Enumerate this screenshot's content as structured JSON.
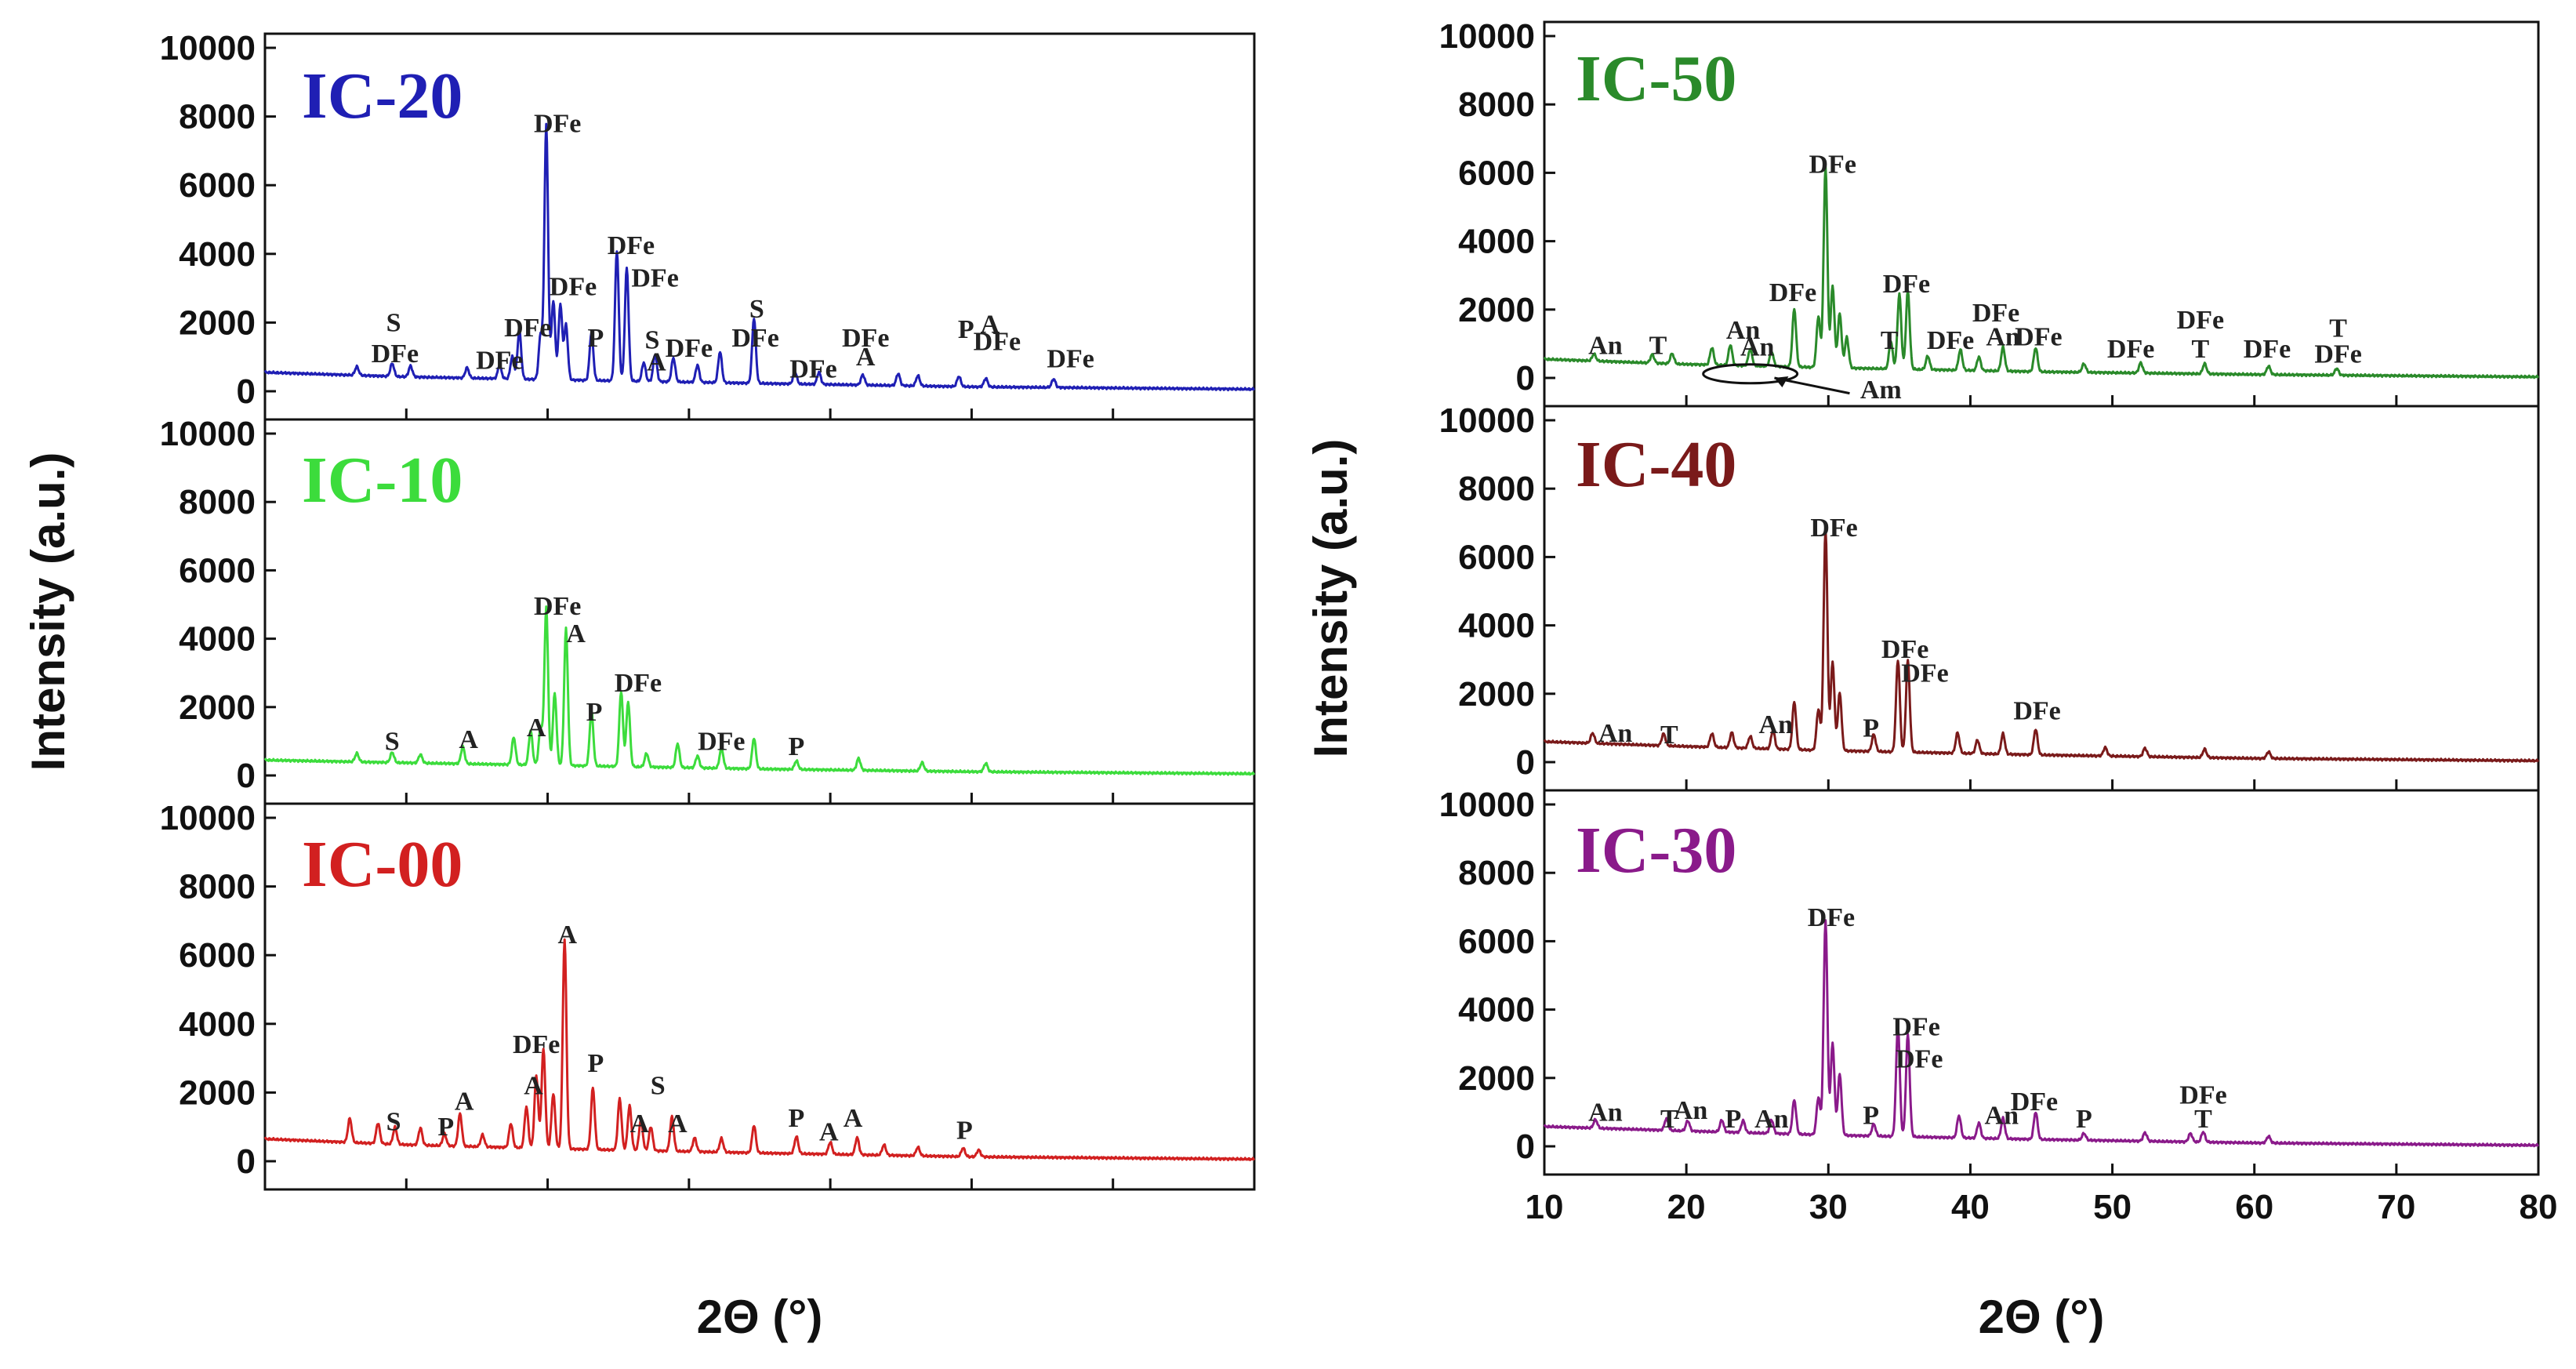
{
  "chart_data": [
    {
      "type": "line",
      "title": "IC-20",
      "column": "left",
      "color": "#1f1fb4",
      "ylabel": "Intensity (a.u.)",
      "xlabel": "2Θ (°)",
      "xlim": [
        10,
        80
      ],
      "ylim": [
        0,
        10000
      ],
      "yticks": [
        "0",
        "2000",
        "4000",
        "6000",
        "8000",
        "10000"
      ],
      "xticks": [
        "10",
        "20",
        "30",
        "40",
        "50",
        "60",
        "70",
        "80"
      ],
      "baseline": [
        [
          10,
          550
        ],
        [
          20,
          420
        ],
        [
          30,
          340
        ],
        [
          45,
          230
        ],
        [
          60,
          130
        ],
        [
          80,
          60
        ]
      ],
      "peaks": [
        [
          16.5,
          250
        ],
        [
          19.0,
          380
        ],
        [
          20.3,
          320
        ],
        [
          24.3,
          300
        ],
        [
          26.6,
          380
        ],
        [
          27.5,
          650
        ],
        [
          28.0,
          1400
        ],
        [
          29.5,
          1300
        ],
        [
          29.9,
          7400
        ],
        [
          30.4,
          2300
        ],
        [
          30.9,
          2200
        ],
        [
          31.3,
          1600
        ],
        [
          33.1,
          1400
        ],
        [
          34.9,
          3800
        ],
        [
          35.6,
          3300
        ],
        [
          36.8,
          550
        ],
        [
          37.6,
          800
        ],
        [
          38.9,
          700
        ],
        [
          40.6,
          500
        ],
        [
          42.2,
          900
        ],
        [
          44.6,
          1900
        ],
        [
          47.5,
          350
        ],
        [
          49.2,
          350
        ],
        [
          52.3,
          300
        ],
        [
          54.8,
          350
        ],
        [
          56.2,
          300
        ],
        [
          59.1,
          300
        ],
        [
          61.0,
          250
        ],
        [
          65.8,
          250
        ]
      ],
      "annotations": [
        {
          "text": "DFe",
          "x": 30.7,
          "y": 7550
        },
        {
          "text": "DFe",
          "x": 35.9,
          "y": 4000
        },
        {
          "text": "DFe",
          "x": 31.8,
          "y": 2800
        },
        {
          "text": "DFe",
          "x": 37.6,
          "y": 3050
        },
        {
          "text": "DFe",
          "x": 28.6,
          "y": 1600
        },
        {
          "text": "P",
          "x": 33.4,
          "y": 1300
        },
        {
          "text": "S",
          "x": 37.4,
          "y": 1250
        },
        {
          "text": "A",
          "x": 37.7,
          "y": 600
        },
        {
          "text": "DFe",
          "x": 40.0,
          "y": 1000
        },
        {
          "text": "S",
          "x": 19.1,
          "y": 1750
        },
        {
          "text": "DFe",
          "x": 19.2,
          "y": 850
        },
        {
          "text": "DFe",
          "x": 26.6,
          "y": 650
        },
        {
          "text": "S",
          "x": 44.8,
          "y": 2150
        },
        {
          "text": "DFe",
          "x": 44.7,
          "y": 1300
        },
        {
          "text": "DFe",
          "x": 48.8,
          "y": 400
        },
        {
          "text": "DFe",
          "x": 52.5,
          "y": 1300
        },
        {
          "text": "A",
          "x": 52.5,
          "y": 750
        },
        {
          "text": "P",
          "x": 59.6,
          "y": 1550
        },
        {
          "text": "A",
          "x": 61.3,
          "y": 1700
        },
        {
          "text": "DFe",
          "x": 61.8,
          "y": 1200
        },
        {
          "text": "DFe",
          "x": 67.0,
          "y": 700
        }
      ]
    },
    {
      "type": "line",
      "title": "IC-10",
      "column": "left",
      "color": "#3cdc3c",
      "xlim": [
        10,
        80
      ],
      "ylim": [
        0,
        10000
      ],
      "yticks": [
        "0",
        "2000",
        "4000",
        "6000",
        "8000",
        "10000"
      ],
      "baseline": [
        [
          10,
          450
        ],
        [
          20,
          370
        ],
        [
          30,
          300
        ],
        [
          45,
          190
        ],
        [
          60,
          110
        ],
        [
          80,
          50
        ]
      ],
      "peaks": [
        [
          16.5,
          250
        ],
        [
          19.0,
          300
        ],
        [
          21.0,
          250
        ],
        [
          24.0,
          500
        ],
        [
          27.6,
          800
        ],
        [
          28.8,
          1000
        ],
        [
          29.5,
          1100
        ],
        [
          29.9,
          4600
        ],
        [
          30.5,
          2100
        ],
        [
          31.3,
          4000
        ],
        [
          33.1,
          1600
        ],
        [
          35.2,
          2200
        ],
        [
          35.7,
          1900
        ],
        [
          37.0,
          400
        ],
        [
          39.2,
          700
        ],
        [
          40.6,
          350
        ],
        [
          42.3,
          600
        ],
        [
          44.6,
          900
        ],
        [
          47.6,
          250
        ],
        [
          52.0,
          350
        ],
        [
          56.5,
          250
        ],
        [
          61.0,
          250
        ]
      ],
      "annotations": [
        {
          "text": "DFe",
          "x": 30.7,
          "y": 4700
        },
        {
          "text": "A",
          "x": 32.0,
          "y": 3900
        },
        {
          "text": "DFe",
          "x": 36.4,
          "y": 2450
        },
        {
          "text": "P",
          "x": 33.3,
          "y": 1600
        },
        {
          "text": "S",
          "x": 19.0,
          "y": 750
        },
        {
          "text": "A",
          "x": 24.4,
          "y": 800
        },
        {
          "text": "A",
          "x": 29.2,
          "y": 1150
        },
        {
          "text": "DFe",
          "x": 42.3,
          "y": 750
        },
        {
          "text": "P",
          "x": 47.6,
          "y": 600
        }
      ]
    },
    {
      "type": "line",
      "title": "IC-00",
      "column": "left",
      "color": "#d22020",
      "xlim": [
        10,
        80
      ],
      "ylim": [
        0,
        10000
      ],
      "yticks": [
        "0",
        "2000",
        "4000",
        "6000",
        "8000",
        "10000"
      ],
      "baseline": [
        [
          10,
          650
        ],
        [
          20,
          480
        ],
        [
          30,
          370
        ],
        [
          45,
          240
        ],
        [
          60,
          130
        ],
        [
          80,
          60
        ]
      ],
      "peaks": [
        [
          16.0,
          700
        ],
        [
          18.0,
          600
        ],
        [
          19.2,
          500
        ],
        [
          21.0,
          500
        ],
        [
          22.7,
          350
        ],
        [
          23.8,
          950
        ],
        [
          25.4,
          350
        ],
        [
          27.4,
          700
        ],
        [
          28.5,
          1200
        ],
        [
          29.2,
          2100
        ],
        [
          29.7,
          2900
        ],
        [
          30.4,
          1600
        ],
        [
          31.2,
          6100
        ],
        [
          33.2,
          1800
        ],
        [
          35.1,
          1500
        ],
        [
          35.8,
          1300
        ],
        [
          36.6,
          900
        ],
        [
          37.3,
          700
        ],
        [
          38.8,
          1000
        ],
        [
          40.4,
          400
        ],
        [
          42.3,
          400
        ],
        [
          44.6,
          800
        ],
        [
          47.6,
          500
        ],
        [
          50.0,
          350
        ],
        [
          51.9,
          500
        ],
        [
          53.8,
          300
        ],
        [
          56.2,
          250
        ],
        [
          59.4,
          250
        ],
        [
          60.5,
          200
        ]
      ],
      "annotations": [
        {
          "text": "A",
          "x": 31.4,
          "y": 6350
        },
        {
          "text": "DFe",
          "x": 29.2,
          "y": 3150
        },
        {
          "text": "A",
          "x": 29.0,
          "y": 1950
        },
        {
          "text": "P",
          "x": 33.4,
          "y": 2600
        },
        {
          "text": "S",
          "x": 37.8,
          "y": 1950
        },
        {
          "text": "A",
          "x": 36.5,
          "y": 850
        },
        {
          "text": "A",
          "x": 39.2,
          "y": 850
        },
        {
          "text": "S",
          "x": 19.1,
          "y": 900
        },
        {
          "text": "P",
          "x": 22.8,
          "y": 750
        },
        {
          "text": "A",
          "x": 24.1,
          "y": 1500
        },
        {
          "text": "P",
          "x": 47.6,
          "y": 1000
        },
        {
          "text": "A",
          "x": 49.9,
          "y": 600
        },
        {
          "text": "A",
          "x": 51.6,
          "y": 1000
        },
        {
          "text": "P",
          "x": 59.5,
          "y": 650
        }
      ]
    },
    {
      "type": "line",
      "title": "IC-50",
      "column": "right",
      "color": "#2a8a2a",
      "ylabel": "Intensity (a.u.)",
      "xlabel": "2Θ (°)",
      "xlim": [
        10,
        80
      ],
      "ylim": [
        0,
        10000
      ],
      "yticks": [
        "0",
        "2000",
        "4000",
        "6000",
        "8000",
        "10000"
      ],
      "xticks": [
        "10",
        "20",
        "30",
        "40",
        "50",
        "60",
        "70",
        "80"
      ],
      "baseline": [
        [
          10,
          550
        ],
        [
          20,
          400
        ],
        [
          30,
          300
        ],
        [
          45,
          180
        ],
        [
          60,
          100
        ],
        [
          80,
          30
        ]
      ],
      "peaks": [
        [
          13.5,
          200
        ],
        [
          17.6,
          250
        ],
        [
          19.0,
          300
        ],
        [
          21.8,
          500
        ],
        [
          23.1,
          600
        ],
        [
          24.5,
          500
        ],
        [
          26.0,
          450
        ],
        [
          27.6,
          1700
        ],
        [
          29.3,
          1500
        ],
        [
          29.8,
          5900
        ],
        [
          30.3,
          2400
        ],
        [
          30.8,
          1600
        ],
        [
          31.3,
          900
        ],
        [
          34.4,
          800
        ],
        [
          35.0,
          2200
        ],
        [
          35.6,
          2300
        ],
        [
          37.0,
          400
        ],
        [
          39.3,
          600
        ],
        [
          40.6,
          400
        ],
        [
          42.3,
          700
        ],
        [
          44.6,
          700
        ],
        [
          48.0,
          250
        ],
        [
          52.0,
          300
        ],
        [
          56.5,
          300
        ],
        [
          61.0,
          250
        ],
        [
          65.8,
          200
        ]
      ],
      "annotations": [
        {
          "text": "DFe",
          "x": 30.3,
          "y": 6000
        },
        {
          "text": "DFe",
          "x": 27.5,
          "y": 2250
        },
        {
          "text": "DFe",
          "x": 35.5,
          "y": 2500
        },
        {
          "text": "An",
          "x": 14.3,
          "y": 700
        },
        {
          "text": "T",
          "x": 18.0,
          "y": 700
        },
        {
          "text": "An",
          "x": 24.0,
          "y": 1150
        },
        {
          "text": "An",
          "x": 25.0,
          "y": 650
        },
        {
          "text": "T",
          "x": 34.3,
          "y": 850
        },
        {
          "text": "DFe",
          "x": 38.6,
          "y": 850
        },
        {
          "text": "DFe",
          "x": 41.8,
          "y": 1650
        },
        {
          "text": "An",
          "x": 42.3,
          "y": 950
        },
        {
          "text": "DFe",
          "x": 44.8,
          "y": 950
        },
        {
          "text": "DFe",
          "x": 51.3,
          "y": 600
        },
        {
          "text": "T",
          "x": 56.2,
          "y": 600
        },
        {
          "text": "DFe",
          "x": 56.2,
          "y": 1450
        },
        {
          "text": "DFe",
          "x": 60.9,
          "y": 600
        },
        {
          "text": "T",
          "x": 65.9,
          "y": 1200
        },
        {
          "text": "DFe",
          "x": 65.9,
          "y": 450
        },
        {
          "text": "Am",
          "x": 33.7,
          "y": -600
        }
      ]
    },
    {
      "type": "line",
      "title": "IC-40",
      "column": "right",
      "color": "#7a1a1a",
      "xlim": [
        10,
        80
      ],
      "ylim": [
        0,
        10000
      ],
      "yticks": [
        "0",
        "2000",
        "4000",
        "6000",
        "8000",
        "10000"
      ],
      "baseline": [
        [
          10,
          600
        ],
        [
          20,
          460
        ],
        [
          30,
          340
        ],
        [
          45,
          210
        ],
        [
          60,
          110
        ],
        [
          80,
          40
        ]
      ],
      "peaks": [
        [
          13.4,
          300
        ],
        [
          18.4,
          350
        ],
        [
          21.8,
          400
        ],
        [
          23.2,
          450
        ],
        [
          24.5,
          350
        ],
        [
          26.1,
          550
        ],
        [
          27.6,
          1400
        ],
        [
          29.3,
          1200
        ],
        [
          29.8,
          6500
        ],
        [
          30.3,
          2600
        ],
        [
          30.8,
          1700
        ],
        [
          33.2,
          500
        ],
        [
          34.9,
          2700
        ],
        [
          35.6,
          2700
        ],
        [
          39.1,
          600
        ],
        [
          40.5,
          400
        ],
        [
          42.3,
          600
        ],
        [
          44.6,
          750
        ],
        [
          49.5,
          250
        ],
        [
          52.3,
          250
        ],
        [
          56.5,
          250
        ],
        [
          61.0,
          200
        ]
      ],
      "annotations": [
        {
          "text": "DFe",
          "x": 30.4,
          "y": 6600
        },
        {
          "text": "DFe",
          "x": 35.4,
          "y": 3050
        },
        {
          "text": "DFe",
          "x": 36.8,
          "y": 2350
        },
        {
          "text": "An",
          "x": 15.0,
          "y": 600
        },
        {
          "text": "T",
          "x": 18.8,
          "y": 550
        },
        {
          "text": "An",
          "x": 26.3,
          "y": 850
        },
        {
          "text": "P",
          "x": 33.0,
          "y": 750
        },
        {
          "text": "DFe",
          "x": 44.7,
          "y": 1250
        }
      ]
    },
    {
      "type": "line",
      "title": "IC-30",
      "column": "right",
      "color": "#8a1a8a",
      "xlim": [
        10,
        80
      ],
      "ylim": [
        0,
        10000
      ],
      "yticks": [
        "0",
        "2000",
        "4000",
        "6000",
        "8000",
        "10000"
      ],
      "xticks": [
        "10",
        "20",
        "30",
        "40",
        "50",
        "60",
        "70",
        "80"
      ],
      "baseline": [
        [
          10,
          580
        ],
        [
          20,
          450
        ],
        [
          30,
          330
        ],
        [
          45,
          200
        ],
        [
          60,
          100
        ],
        [
          80,
          30
        ]
      ],
      "peaks": [
        [
          13.6,
          250
        ],
        [
          18.6,
          350
        ],
        [
          20.1,
          300
        ],
        [
          22.5,
          350
        ],
        [
          24.0,
          350
        ],
        [
          26.0,
          400
        ],
        [
          27.6,
          1000
        ],
        [
          29.3,
          1100
        ],
        [
          29.8,
          6300
        ],
        [
          30.3,
          2700
        ],
        [
          30.8,
          1800
        ],
        [
          33.2,
          350
        ],
        [
          34.9,
          3200
        ],
        [
          35.6,
          3000
        ],
        [
          39.2,
          650
        ],
        [
          40.6,
          450
        ],
        [
          42.3,
          600
        ],
        [
          44.6,
          800
        ],
        [
          48.0,
          200
        ],
        [
          52.3,
          250
        ],
        [
          55.5,
          250
        ],
        [
          56.4,
          300
        ],
        [
          61.0,
          200
        ]
      ],
      "annotations": [
        {
          "text": "DFe",
          "x": 30.2,
          "y": 6450
        },
        {
          "text": "DFe",
          "x": 36.2,
          "y": 3250
        },
        {
          "text": "DFe",
          "x": 36.4,
          "y": 2300
        },
        {
          "text": "An",
          "x": 14.3,
          "y": 750
        },
        {
          "text": "T",
          "x": 18.8,
          "y": 550
        },
        {
          "text": "An",
          "x": 20.3,
          "y": 800
        },
        {
          "text": "P",
          "x": 23.3,
          "y": 550
        },
        {
          "text": "An",
          "x": 26.0,
          "y": 550
        },
        {
          "text": "P",
          "x": 33.0,
          "y": 650
        },
        {
          "text": "An",
          "x": 42.2,
          "y": 650
        },
        {
          "text": "DFe",
          "x": 44.5,
          "y": 1050
        },
        {
          "text": "P",
          "x": 48.0,
          "y": 550
        },
        {
          "text": "DFe",
          "x": 56.4,
          "y": 1250
        },
        {
          "text": "T",
          "x": 56.4,
          "y": 550
        }
      ]
    }
  ]
}
